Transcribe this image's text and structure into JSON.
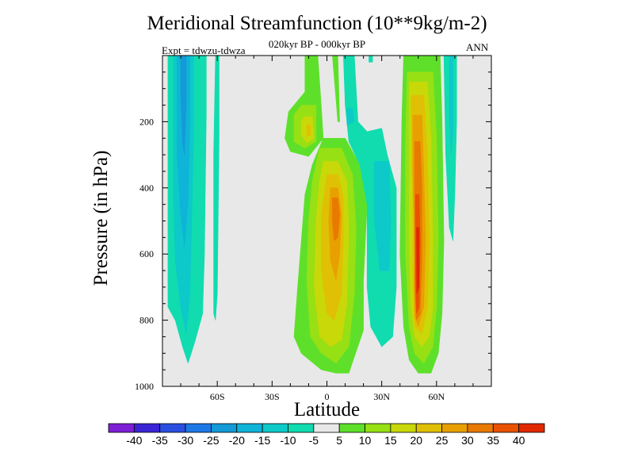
{
  "chart_data": {
    "type": "heatmap",
    "title": "Meridional Streamfunction (10**9kg/m-2)",
    "subtitle": "020kyr BP - 000kyr BP",
    "left_label": "Expt = tdwzu-tdwza",
    "right_label": "ANN",
    "xlabel": "Latitude",
    "ylabel": "Pressure (in hPa)",
    "xlim": [
      -90,
      90
    ],
    "ylim": [
      1000,
      0
    ],
    "x_ticks": [
      {
        "value": -60,
        "label": "60S"
      },
      {
        "value": -30,
        "label": "30S"
      },
      {
        "value": 0,
        "label": "0"
      },
      {
        "value": 30,
        "label": "30N"
      },
      {
        "value": 60,
        "label": "60N"
      }
    ],
    "y_ticks": [
      {
        "value": 200,
        "label": "200"
      },
      {
        "value": 400,
        "label": "400"
      },
      {
        "value": 600,
        "label": "600"
      },
      {
        "value": 800,
        "label": "800"
      },
      {
        "value": 1000,
        "label": "1000"
      }
    ],
    "background_color": "#e8e8e8",
    "colorbar": {
      "labels": [
        "-40",
        "-35",
        "-30",
        "-25",
        "-20",
        "-15",
        "-10",
        "-5",
        "5",
        "10",
        "15",
        "20",
        "25",
        "30",
        "35",
        "40"
      ],
      "colors": [
        "#7e1fd6",
        "#3a24d4",
        "#2a4fe0",
        "#1d78e6",
        "#149ad6",
        "#0fb4d9",
        "#0dc9c9",
        "#10dcb0",
        "#e8e8e8",
        "#5ee02a",
        "#96e014",
        "#c8d808",
        "#e0c004",
        "#e8a000",
        "#e87a00",
        "#e85200",
        "#e02800"
      ]
    },
    "features": [
      {
        "region": "far southern high latitudes (~-87 to -66)",
        "sign": "negative",
        "range": [
          -25,
          -5
        ]
      },
      {
        "region": "~-60 narrow band",
        "sign": "negative",
        "range": [
          -10,
          -5
        ]
      },
      {
        "region": "upper troposphere ~-15 to 0, 150-300 hPa",
        "sign": "positive",
        "range": [
          5,
          25
        ]
      },
      {
        "region": "deep column ~-5 to 10, 300-950 hPa",
        "sign": "positive",
        "range": [
          5,
          25
        ]
      },
      {
        "region": "~10 to 35",
        "sign": "negative",
        "range": [
          -15,
          -5
        ]
      },
      {
        "region": "deep column ~45 to 60",
        "sign": "positive",
        "range": [
          5,
          40
        ]
      },
      {
        "region": "~65 to 70",
        "sign": "negative",
        "range": [
          -10,
          -5
        ]
      }
    ]
  }
}
